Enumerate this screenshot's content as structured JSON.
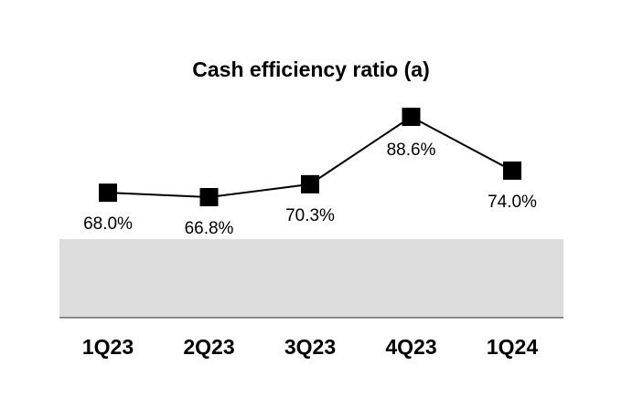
{
  "chart_data": {
    "type": "line",
    "title": "Cash efficiency ratio (a)",
    "categories": [
      "1Q23",
      "2Q23",
      "3Q23",
      "4Q23",
      "1Q24"
    ],
    "values": [
      68.0,
      66.8,
      70.3,
      88.6,
      74.0
    ],
    "data_labels": [
      "68.0%",
      "66.8%",
      "70.3%",
      "88.6%",
      "74.0%"
    ],
    "xlabel": "",
    "ylabel": "",
    "marker": "square",
    "grid": false,
    "legend": "none",
    "colors": {
      "line": "#000000",
      "marker": "#000000",
      "band": "#dcdcdc",
      "axis": "#8c8c8c"
    }
  }
}
